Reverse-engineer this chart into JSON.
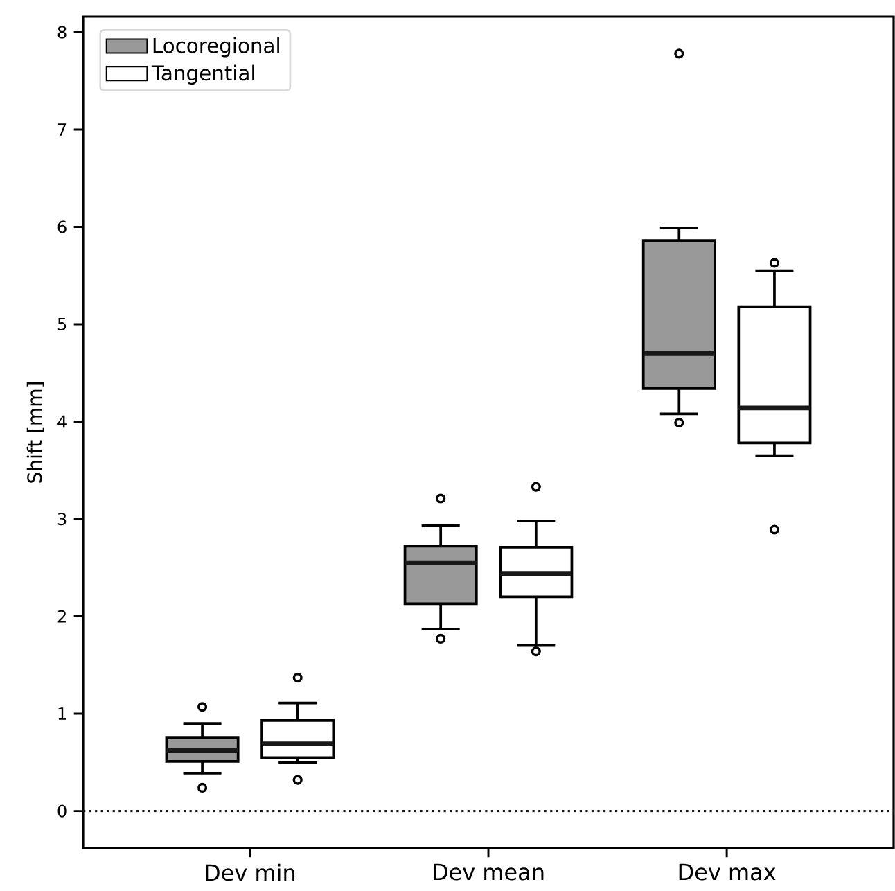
{
  "chart_data": {
    "type": "box",
    "ylabel": "Shift [mm]",
    "categories": [
      "Dev min",
      "Dev mean",
      "Dev max"
    ],
    "series": [
      {
        "name": "Locoregional",
        "color": "#999999",
        "boxes": [
          {
            "low": 0.39,
            "q1": 0.51,
            "median": 0.62,
            "q3": 0.75,
            "high": 0.9,
            "outliers": [
              1.07,
              0.24
            ]
          },
          {
            "low": 1.87,
            "q1": 2.13,
            "median": 2.55,
            "q3": 2.72,
            "high": 2.93,
            "outliers": [
              3.21,
              1.77
            ]
          },
          {
            "low": 4.08,
            "q1": 4.34,
            "median": 4.7,
            "q3": 5.86,
            "high": 5.99,
            "outliers": [
              7.78,
              3.99
            ]
          }
        ]
      },
      {
        "name": "Tangential",
        "color": "#ffffff",
        "boxes": [
          {
            "low": 0.5,
            "q1": 0.55,
            "median": 0.69,
            "q3": 0.93,
            "high": 1.11,
            "outliers": [
              1.37,
              0.32
            ]
          },
          {
            "low": 1.7,
            "q1": 2.2,
            "median": 2.44,
            "q3": 2.71,
            "high": 2.98,
            "outliers": [
              3.33,
              1.64
            ]
          },
          {
            "low": 3.65,
            "q1": 3.78,
            "median": 4.14,
            "q3": 5.18,
            "high": 5.55,
            "outliers": [
              5.63,
              2.89
            ]
          }
        ]
      }
    ],
    "ylim": [
      -0.38,
      8.16
    ],
    "yticks": [
      0,
      1,
      2,
      3,
      4,
      5,
      6,
      7,
      8
    ],
    "ref_lines": [
      {
        "axis": "y",
        "value": 0,
        "line_style": "dotted",
        "color": "#1a1a1a"
      }
    ],
    "legend": "top left"
  }
}
